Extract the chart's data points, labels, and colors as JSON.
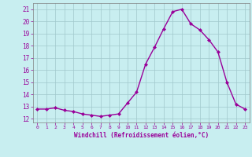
{
  "x": [
    0,
    1,
    2,
    3,
    4,
    5,
    6,
    7,
    8,
    9,
    10,
    11,
    12,
    13,
    14,
    15,
    16,
    17,
    18,
    19,
    20,
    21,
    22,
    23
  ],
  "y": [
    12.8,
    12.8,
    12.9,
    12.7,
    12.6,
    12.4,
    12.3,
    12.2,
    12.3,
    12.4,
    13.3,
    14.2,
    16.5,
    17.9,
    19.4,
    20.8,
    21.0,
    19.8,
    19.3,
    18.5,
    17.5,
    15.0,
    13.2,
    12.8
  ],
  "line_color": "#990099",
  "marker": "D",
  "marker_size": 2,
  "line_width": 1.0,
  "bg_color": "#c8eef0",
  "grid_color": "#a0c8cc",
  "xlabel": "Windchill (Refroidissement éolien,°C)",
  "xlabel_color": "#990099",
  "ylabel_ticks": [
    12,
    13,
    14,
    15,
    16,
    17,
    18,
    19,
    20,
    21
  ],
  "ylim": [
    11.7,
    21.5
  ],
  "xlim": [
    -0.5,
    23.5
  ],
  "tick_color": "#990099",
  "tick_label_color": "#990099",
  "spine_color": "#808080"
}
